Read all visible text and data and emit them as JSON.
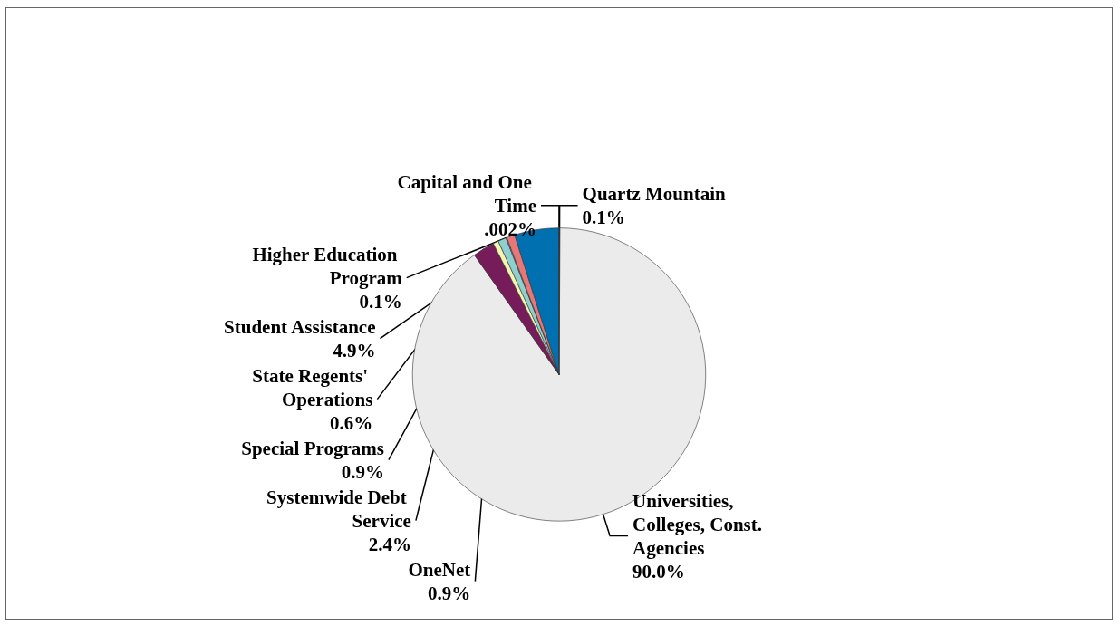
{
  "chart_data": {
    "type": "pie",
    "categories": [
      "Quartz Mountain",
      "Universities, Colleges, Const. Agencies",
      "Systemwide Debt Service",
      "State Regents' Operations",
      "OneNet",
      "Higher Education Program",
      "Special Programs",
      "Student Assistance",
      "Capital and One Time"
    ],
    "values": [
      0.1,
      90.0,
      2.4,
      0.6,
      0.9,
      0.1,
      0.9,
      4.9,
      0.002
    ],
    "value_labels": [
      "0.1%",
      "90.0%",
      "2.4%",
      "0.6%",
      "0.9%",
      "0.1%",
      "0.9%",
      "4.9%",
      ".002%"
    ],
    "colors": [
      "#1f1f7a",
      "#ebebeb",
      "#761c5a",
      "#f5f5b0",
      "#8ecfcf",
      "#9999cc",
      "#e87878",
      "#0070b0",
      "#000080"
    ],
    "legend": false
  }
}
